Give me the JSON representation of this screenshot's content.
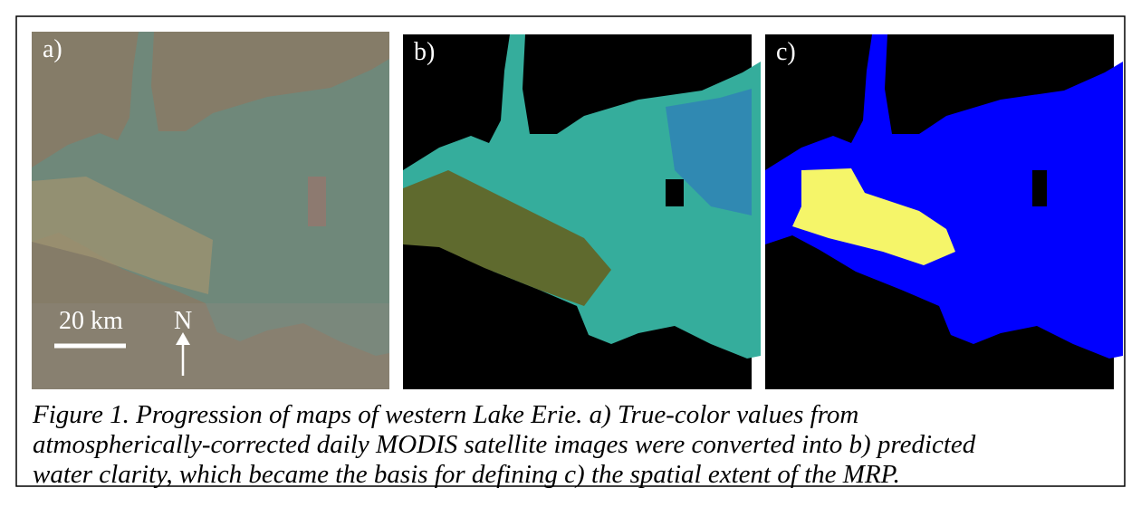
{
  "figure": {
    "panels": [
      {
        "label": "a)"
      },
      {
        "label": "b)"
      },
      {
        "label": "c)"
      }
    ],
    "scale_bar": "20 km",
    "north": "N",
    "caption": [
      "Figure 1. Progression of maps of western Lake Erie. a) True-color values from",
      "atmospherically-corrected daily MODIS satellite images were converted into b) predicted",
      "water clarity, which became the basis for defining c) the spatial extent of the MRP."
    ]
  }
}
